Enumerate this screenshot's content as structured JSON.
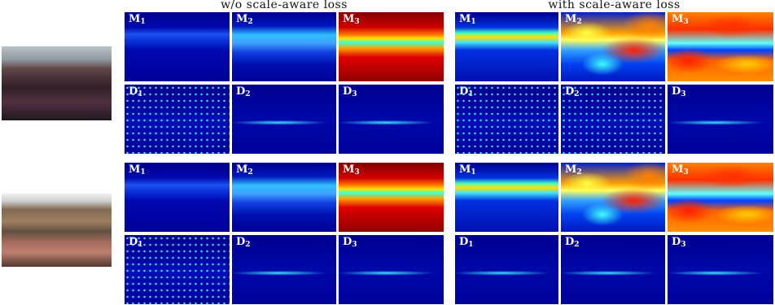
{
  "header": {
    "left": "w/o scale-aware loss",
    "right": "with scale-aware loss"
  },
  "examples": [
    {
      "groups": [
        {
          "panels": [
            [
              {
                "letter": "M",
                "sub": "1"
              },
              {
                "letter": "M",
                "sub": "2"
              },
              {
                "letter": "M",
                "sub": "3"
              }
            ],
            [
              {
                "letter": "D",
                "sub": "1"
              },
              {
                "letter": "D",
                "sub": "2"
              },
              {
                "letter": "D",
                "sub": "3"
              }
            ]
          ]
        },
        {
          "panels": [
            [
              {
                "letter": "M",
                "sub": "1"
              },
              {
                "letter": "M",
                "sub": "2"
              },
              {
                "letter": "M",
                "sub": "3"
              }
            ],
            [
              {
                "letter": "D",
                "sub": "1"
              },
              {
                "letter": "D",
                "sub": "2"
              },
              {
                "letter": "D",
                "sub": "3"
              }
            ]
          ]
        }
      ]
    },
    {
      "groups": [
        {
          "panels": [
            [
              {
                "letter": "M",
                "sub": "1"
              },
              {
                "letter": "M",
                "sub": "2"
              },
              {
                "letter": "M",
                "sub": "3"
              }
            ],
            [
              {
                "letter": "D",
                "sub": "1"
              },
              {
                "letter": "D",
                "sub": "2"
              },
              {
                "letter": "D",
                "sub": "3"
              }
            ]
          ]
        },
        {
          "panels": [
            [
              {
                "letter": "M",
                "sub": "1"
              },
              {
                "letter": "M",
                "sub": "2"
              },
              {
                "letter": "M",
                "sub": "3"
              }
            ],
            [
              {
                "letter": "D",
                "sub": "1"
              },
              {
                "letter": "D",
                "sub": "2"
              },
              {
                "letter": "D",
                "sub": "3"
              }
            ]
          ]
        }
      ]
    }
  ]
}
